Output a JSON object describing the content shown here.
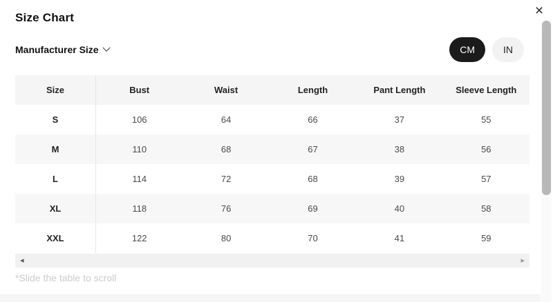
{
  "modal": {
    "title": "Size Chart",
    "footnote": "*Slide the table to scroll"
  },
  "icons": {
    "close": "×",
    "scroll_left_arrow": "◂",
    "scroll_right_arrow": "▸"
  },
  "controls": {
    "size_selector_label": "Manufacturer Size",
    "unit_cm_label": "CM",
    "unit_in_label": "IN",
    "selected_unit": "CM"
  },
  "size_table": {
    "headers": [
      "Size",
      "Bust",
      "Waist",
      "Length",
      "Pant Length",
      "Sleeve Length"
    ],
    "rows": [
      [
        "S",
        "106",
        "64",
        "66",
        "37",
        "55"
      ],
      [
        "M",
        "110",
        "68",
        "67",
        "38",
        "56"
      ],
      [
        "L",
        "114",
        "72",
        "68",
        "39",
        "57"
      ],
      [
        "XL",
        "118",
        "76",
        "69",
        "40",
        "58"
      ],
      [
        "XXL",
        "122",
        "80",
        "70",
        "41",
        "59"
      ]
    ]
  },
  "colors": {
    "selected_pill_bg": "#1b1b1b",
    "unselected_pill_bg": "#f2f2f2",
    "header_row_bg": "#f5f5f6",
    "alt_row_bg": "#f7f7f7",
    "scroll_track": "#f1f1f1",
    "scroll_thumb": "#b8b8b8"
  }
}
